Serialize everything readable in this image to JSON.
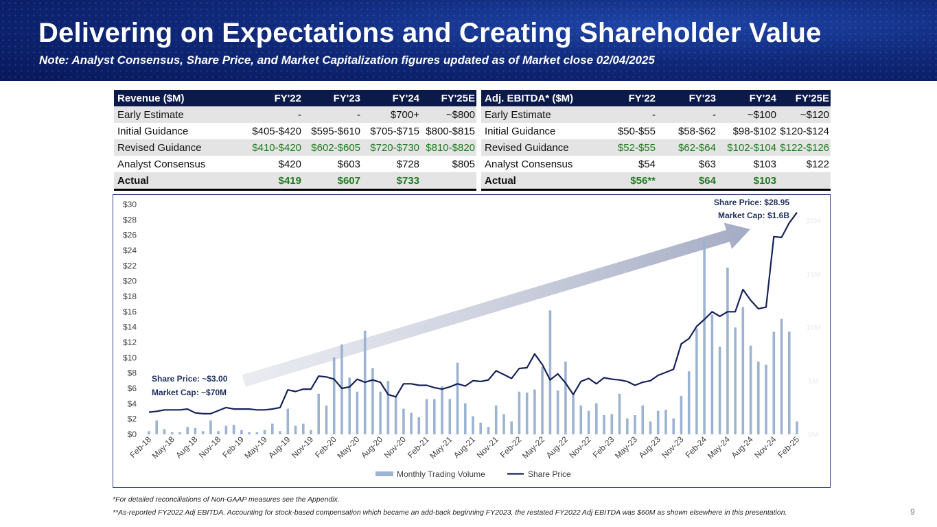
{
  "header": {
    "title": "Delivering on Expectations and Creating Shareholder Value",
    "subtitle": "Note: Analyst Consensus, Share Price, and Market Capitalization figures updated as of Market close 02/04/2025"
  },
  "revenue_table": {
    "headers": [
      "Revenue ($M)",
      "FY'22",
      "FY'23",
      "FY'24",
      "FY'25E"
    ],
    "rows": [
      {
        "label": "Early Estimate",
        "values": [
          "-",
          "-",
          "$700+",
          "~$800"
        ]
      },
      {
        "label": "Initial Guidance",
        "values": [
          "$405-$420",
          "$595-$610",
          "$705-$715",
          "$800-$815"
        ]
      },
      {
        "label": "Revised Guidance",
        "values": [
          "$410-$420",
          "$602-$605",
          "$720-$730",
          "$810-$820"
        ]
      },
      {
        "label": "Analyst Consensus",
        "values": [
          "$420",
          "$603",
          "$728",
          "$805"
        ]
      },
      {
        "label": "Actual",
        "values": [
          "$419",
          "$607",
          "$733",
          ""
        ]
      }
    ]
  },
  "ebitda_table": {
    "headers": [
      "Adj. EBITDA* ($M)",
      "FY'22",
      "FY'23",
      "FY'24",
      "FY'25E"
    ],
    "rows": [
      {
        "label": "Early Estimate",
        "values": [
          "-",
          "-",
          "~$100",
          "~$120"
        ]
      },
      {
        "label": "Initial Guidance",
        "values": [
          "$50-$55",
          "$58-$62",
          "$98-$102",
          "$120-$124"
        ]
      },
      {
        "label": "Revised Guidance",
        "values": [
          "$52-$55",
          "$62-$64",
          "$102-$104",
          "$122-$126"
        ]
      },
      {
        "label": "Analyst Consensus",
        "values": [
          "$54",
          "$63",
          "$103",
          "$122"
        ]
      },
      {
        "label": "Actual",
        "values": [
          "$56**",
          "$64",
          "$103",
          ""
        ]
      }
    ]
  },
  "annotations": {
    "start_price": "Share Price: ~$3.00",
    "start_cap": "Market Cap: ~$70M",
    "end_price": "Share Price: $28.95",
    "end_cap": "Market Cap: $1.6B"
  },
  "chart_data": {
    "type": "bar",
    "title": "",
    "xlabel": "",
    "ylabel": "",
    "ylim": [
      0,
      30
    ],
    "y_ticks": [
      "$0",
      "$2",
      "$4",
      "$6",
      "$8",
      "$10",
      "$12",
      "$14",
      "$16",
      "$18",
      "$20",
      "$22",
      "$24",
      "$26",
      "$28",
      "$30"
    ],
    "y2_ticks": [
      "0M",
      "5M",
      "10M",
      "15M",
      "20M"
    ],
    "x_tick_labels": [
      "Feb-18",
      "May-18",
      "Aug-18",
      "Nov-18",
      "Feb-19",
      "May-19",
      "Aug-19",
      "Nov-19",
      "Feb-20",
      "May-20",
      "Aug-20",
      "Nov-20",
      "Feb-21",
      "May-21",
      "Aug-21",
      "Nov-21",
      "Feb-22",
      "May-22",
      "Aug-22",
      "Nov-22",
      "Feb-23",
      "May-23",
      "Aug-23",
      "Nov-23",
      "Feb-24",
      "May-24",
      "Aug-24",
      "Nov-24",
      "Feb-25"
    ],
    "legend": [
      "Monthly Trading Volume",
      "Share Price"
    ],
    "legend_position": "bottom",
    "grid": false,
    "series": [
      {
        "name": "Monthly Trading Volume",
        "type": "bar",
        "axis": "right",
        "values": [
          0.3,
          1.3,
          0.5,
          0.2,
          0.2,
          0.7,
          0.6,
          0.3,
          1.3,
          0.3,
          0.8,
          0.9,
          0.4,
          0.2,
          0.2,
          0.4,
          1.0,
          0.3,
          2.4,
          0.8,
          1.0,
          0.4,
          3.8,
          2.7,
          7.2,
          8.4,
          5.3,
          4.0,
          9.7,
          6.2,
          4.0,
          5.0,
          3.5,
          2.4,
          2.0,
          1.6,
          3.3,
          3.3,
          4.5,
          3.3,
          6.7,
          2.9,
          1.7,
          1.1,
          0.7,
          2.7,
          1.9,
          1.2,
          4.0,
          3.9,
          4.2,
          6.3,
          11.6,
          4.1,
          6.8,
          3.9,
          2.7,
          2.2,
          2.9,
          1.8,
          1.9,
          3.8,
          1.5,
          1.8,
          2.7,
          1.2,
          2.2,
          2.3,
          1.5,
          3.6,
          5.9,
          9.9,
          18.1,
          11.2,
          8.2,
          15.6,
          10.0,
          11.9,
          8.3,
          6.8,
          6.5,
          9.6,
          10.8,
          9.6,
          1.2
        ]
      },
      {
        "name": "Share Price",
        "type": "line",
        "axis": "left",
        "values": [
          2.9,
          3.0,
          3.2,
          3.2,
          3.2,
          3.3,
          2.8,
          2.7,
          2.7,
          3.1,
          3.5,
          3.3,
          3.3,
          3.3,
          3.2,
          3.2,
          3.3,
          3.5,
          5.8,
          5.6,
          5.9,
          5.9,
          7.6,
          7.5,
          7.2,
          6.0,
          6.2,
          7.2,
          6.8,
          7.1,
          6.8,
          5.2,
          4.9,
          6.6,
          6.6,
          6.4,
          6.4,
          6.1,
          5.9,
          6.2,
          6.6,
          6.3,
          7.0,
          6.9,
          7.1,
          8.3,
          7.8,
          7.3,
          8.6,
          8.7,
          10.5,
          9.1,
          7.1,
          7.9,
          6.7,
          5.2,
          6.9,
          7.3,
          6.6,
          7.4,
          7.2,
          7.1,
          6.9,
          6.4,
          6.8,
          7.0,
          7.7,
          8.1,
          8.5,
          11.8,
          12.5,
          14.1,
          15.0,
          16.0,
          15.4,
          16.0,
          16.0,
          18.9,
          17.5,
          16.4,
          16.6,
          25.8,
          25.7,
          27.6,
          28.95
        ]
      }
    ]
  },
  "footnotes": {
    "note1": "*For detailed reconciliations of Non-GAAP measures see the Appendix.",
    "note2": "**As-reported FY2022 Adj EBITDA. Accounting for stock-based compensation which became an add-back beginning FY2023, the restated FY2022 Adj EBITDA was $60M as shown elsewhere in this presentation.",
    "page_number": "9"
  }
}
